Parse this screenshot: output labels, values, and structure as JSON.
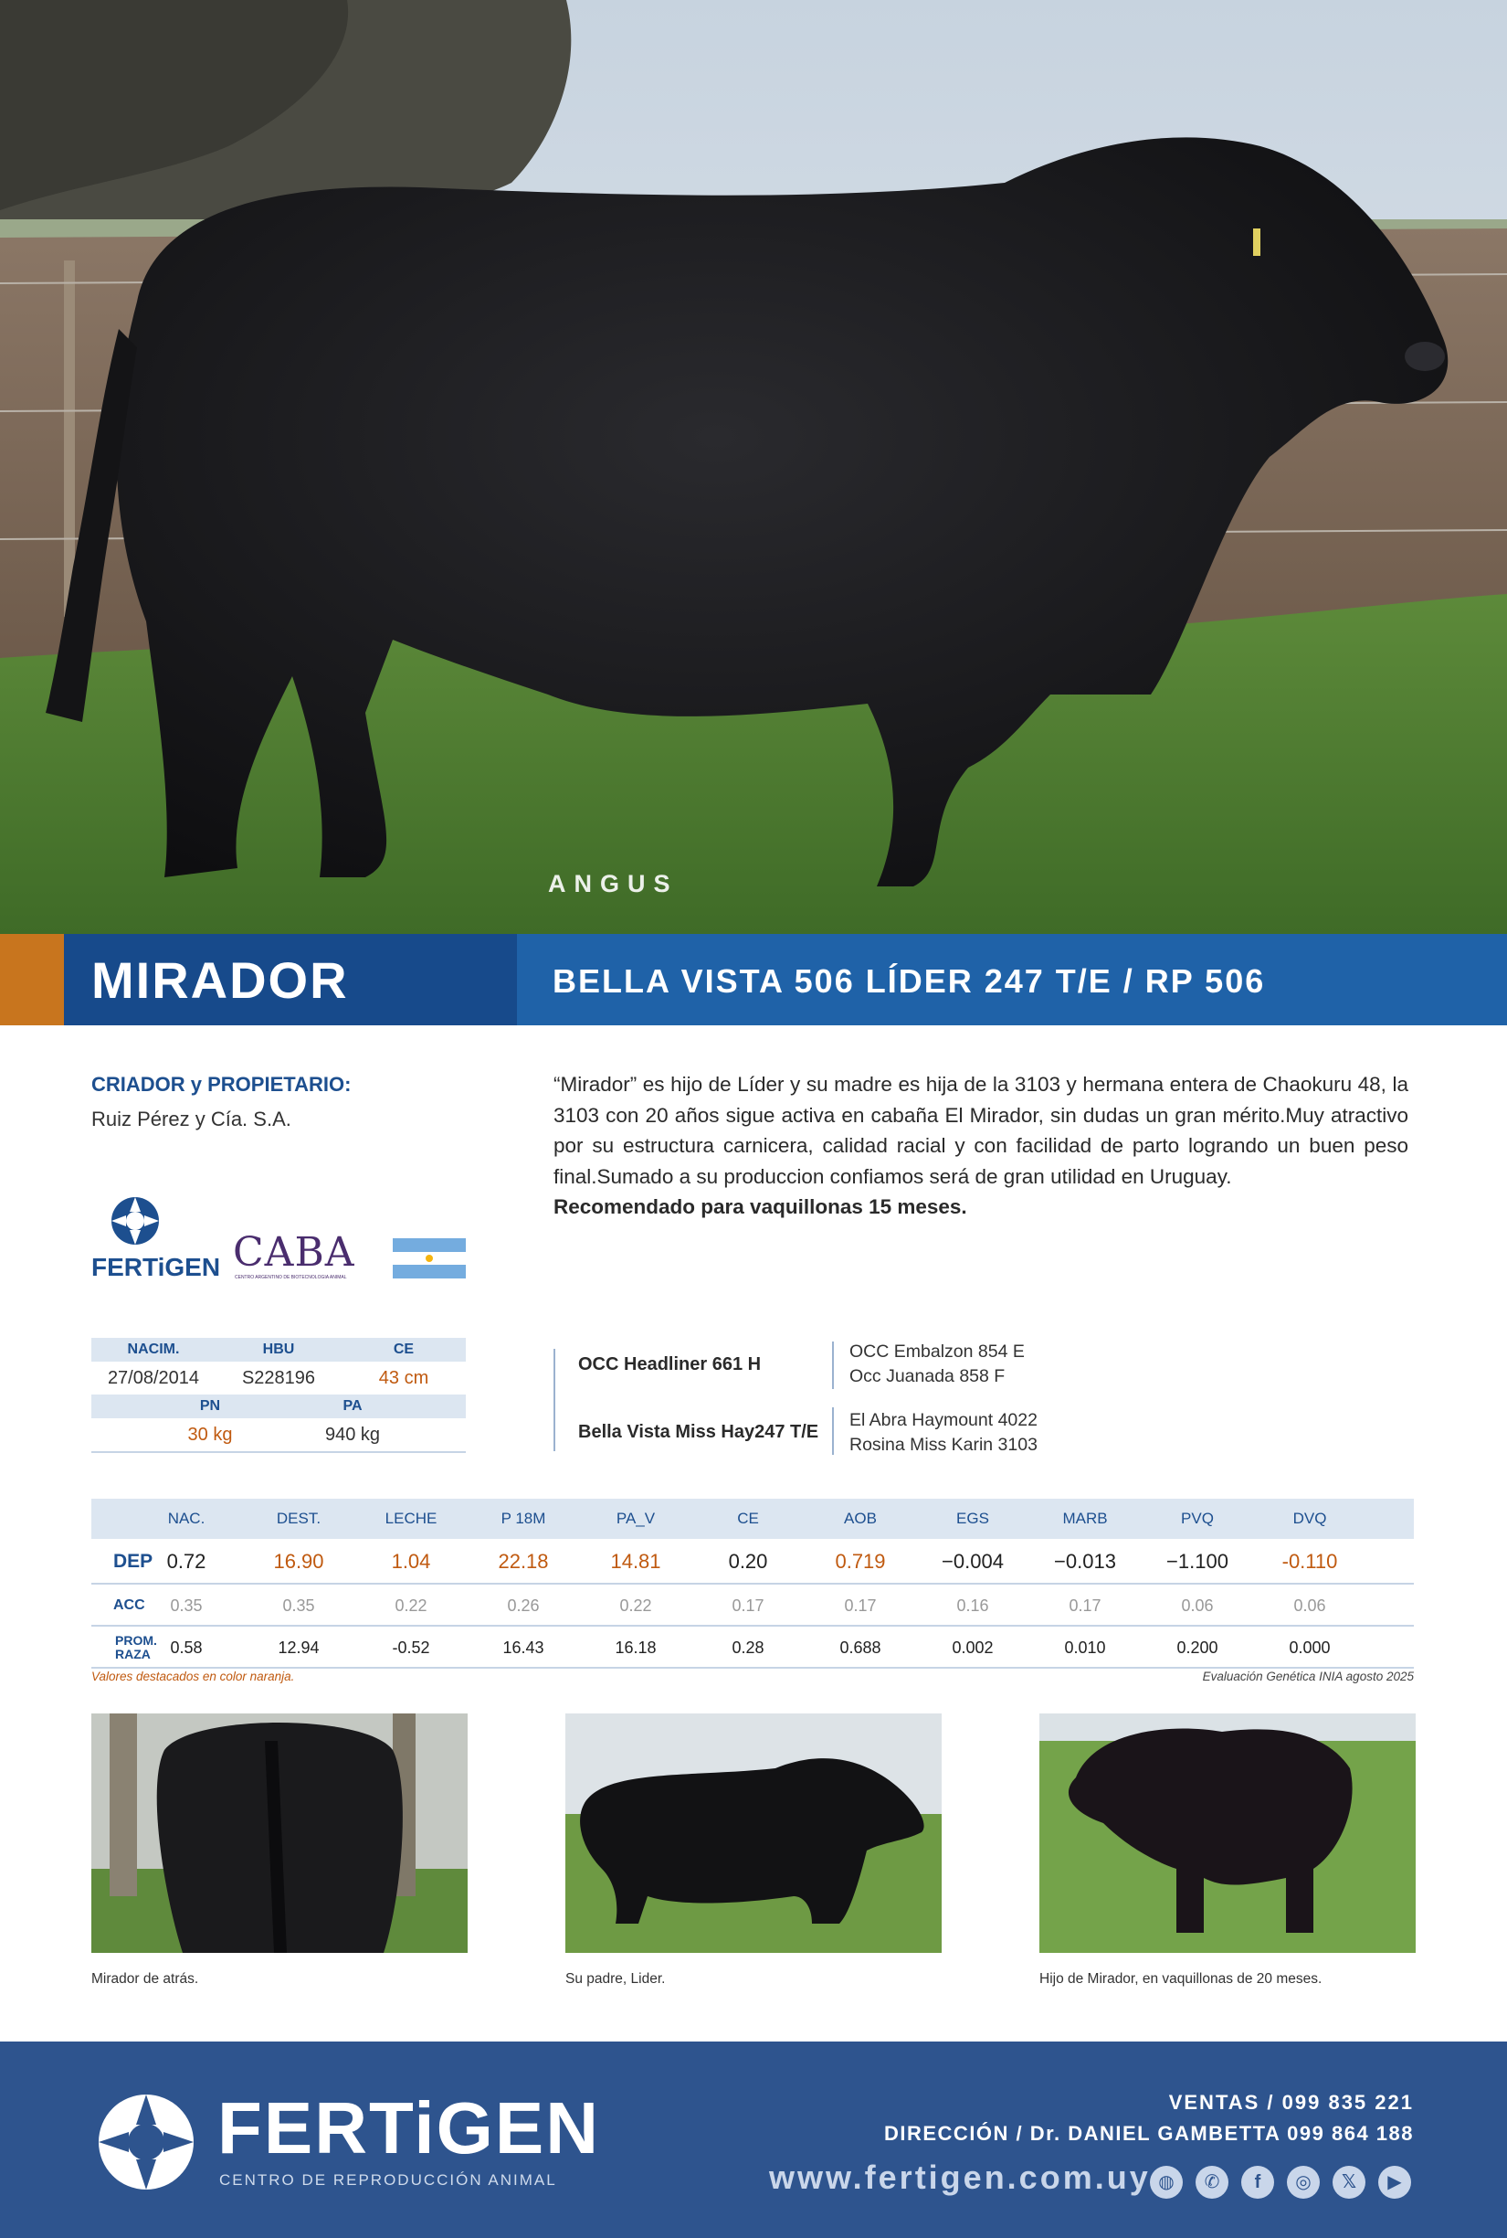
{
  "hero": {
    "watermark": "ANGUS"
  },
  "header": {
    "name": "MIRADOR",
    "registration": "BELLA VISTA 506 LÍDER 247 T/E  / RP 506"
  },
  "breeder": {
    "label": "CRIADOR y PROPIETARIO:",
    "value": "Ruiz Pérez y Cía. S.A."
  },
  "description": {
    "body": "“Mirador” es hijo de Líder y su madre es hija de la 3103 y hermana entera de Chaokuru 48, la 3103 con 20 años sigue activa  en  cabaña El Mirador, sin dudas un gran mérito.Muy atractivo por su estructura carnicera, calidad racial y con facilidad de parto logrando un buen peso final.Sumado a su produccion confiamos será de gran utilidad en Uruguay.",
    "recommendation": "Recomendado para vaquillonas 15 meses."
  },
  "logos": {
    "fertigen": "FERTiGEN",
    "caba": "CABA",
    "caba_sub": "CENTRO ARGENTINO DE BIOTECNOLOGIA ANIMAL",
    "flag_colors": [
      "#74acdf",
      "#ffffff",
      "#74acdf"
    ]
  },
  "birth_table": {
    "row1_headers": [
      "NACIM.",
      "HBU",
      "CE"
    ],
    "row1_values": [
      "27/08/2014",
      "S228196",
      "43 cm"
    ],
    "row2_headers": [
      "PN",
      "PA"
    ],
    "row2_values": [
      "30 kg",
      "940 kg"
    ]
  },
  "pedigree": {
    "sire": "OCC Headliner 661 H",
    "dam": "Bella Vista Miss Hay247 T/E",
    "sire_sire": "OCC Embalzon 854 E",
    "sire_dam": "Occ Juanada 858 F",
    "dam_sire": "El Abra Haymount 4022",
    "dam_dam": "Rosina Miss Karin 3103"
  },
  "dep_table": {
    "columns": [
      "NAC.",
      "DEST.",
      "LECHE",
      "P 18M",
      "PA_V",
      "CE",
      "AOB",
      "EGS",
      "MARB",
      "PVQ",
      "DVQ"
    ],
    "rows": {
      "dep": {
        "label": "DEP",
        "values": [
          "0.72",
          "16.90",
          "1.04",
          "22.18",
          "14.81",
          "0.20",
          "0.719",
          "−0.004",
          "−0.013",
          "−1.100",
          "-0.110"
        ]
      },
      "acc": {
        "label": "ACC",
        "values": [
          "0.35",
          "0.35",
          "0.22",
          "0.26",
          "0.22",
          "0.17",
          "0.17",
          "0.16",
          "0.17",
          "0.06",
          "0.06"
        ]
      },
      "raza": {
        "label1": "PROM.",
        "label2": "RAZA",
        "values": [
          "0.58",
          "12.94",
          "-0.52",
          "16.43",
          "16.18",
          "0.28",
          "0.688",
          "0.002",
          "0.010",
          "0.200",
          "0.000"
        ]
      }
    },
    "highlighted": [
      false,
      true,
      true,
      true,
      true,
      false,
      true,
      false,
      false,
      false,
      true
    ],
    "note_left": "Valores destacados en color naranja.",
    "note_right": "Evaluación Genética INIA agosto 2025"
  },
  "photos": {
    "captions": [
      "Mirador de atrás.",
      "Su padre, Lider.",
      "Hijo de Mirador, en vaquillonas de 20 meses."
    ]
  },
  "footer": {
    "brand": "FERTiGEN",
    "subtitle": "CENTRO DE REPRODUCCIÓN ANIMAL",
    "ventas": "VENTAS / 099 835 221",
    "direccion": "DIRECCIÓN / Dr. DANIEL GAMBETTA 099 864 188",
    "web": "www.fertigen.com.uy",
    "social_icons": [
      "globe-icon",
      "whatsapp-icon",
      "facebook-icon",
      "instagram-icon",
      "x-icon",
      "youtube-icon"
    ],
    "accent": "#2e548e"
  },
  "colors": {
    "orange": "#c8751e",
    "dark_blue": "#174a8b",
    "mid_blue": "#1f62a8",
    "highlight": "#c05a10"
  }
}
